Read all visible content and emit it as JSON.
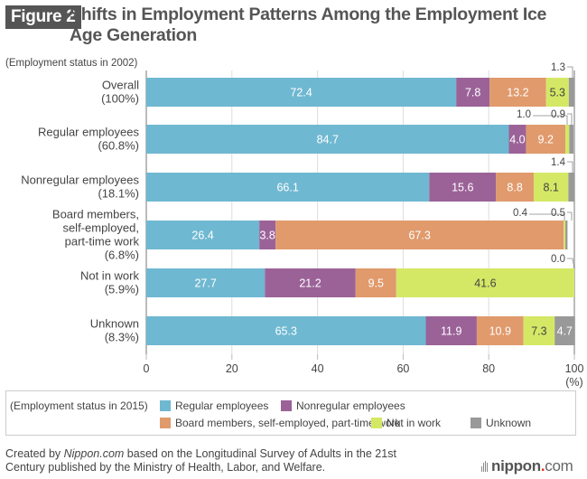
{
  "figure": {
    "badge": "Figure 2",
    "title": "Shifts in Employment Patterns Among the Employment Ice Age Generation",
    "subtitle": "(Employment status in 2002)"
  },
  "chart_data": {
    "type": "bar",
    "orientation": "horizontal",
    "stacked": true,
    "title": "Shifts in Employment Patterns Among the Employment Ice Age Generation",
    "ylabel": "(Employment status in 2002)",
    "xlabel": "(%)",
    "xlim": [
      0,
      100
    ],
    "xticks": [
      0,
      20,
      40,
      60,
      80,
      100
    ],
    "xtick_labels": [
      "0",
      "20",
      "40",
      "60",
      "80",
      "100"
    ],
    "x_unit": "(%)",
    "grid": true,
    "categories": [
      [
        "Overall",
        "(100%)"
      ],
      [
        "Regular employees",
        "(60.8%)"
      ],
      [
        "Nonregular employees",
        "(18.1%)"
      ],
      [
        "Board members,",
        "self-employed,",
        "part-time work",
        "(6.8%)"
      ],
      [
        "Not in work",
        "(5.9%)"
      ],
      [
        "Unknown",
        "(8.3%)"
      ]
    ],
    "series": [
      {
        "name": "Regular employees",
        "color": "#6fb8d1",
        "label_color": "#ffffff",
        "values": [
          72.4,
          84.7,
          66.1,
          26.4,
          27.7,
          65.3
        ]
      },
      {
        "name": "Nonregular employees",
        "color": "#9b6298",
        "label_color": "#ffffff",
        "values": [
          7.8,
          4.0,
          15.6,
          3.8,
          21.2,
          11.9
        ]
      },
      {
        "name": "Board members, self-employed, part-time work",
        "color": "#e09a6c",
        "label_color": "#ffffff",
        "values": [
          13.2,
          9.2,
          8.8,
          67.3,
          9.5,
          10.9
        ]
      },
      {
        "name": "Not in work",
        "color": "#d4e865",
        "label_color": "#444444",
        "values": [
          5.3,
          0.9,
          8.1,
          0.4,
          41.6,
          7.3
        ]
      },
      {
        "name": "Unknown",
        "color": "#999999",
        "label_color": "#ffffff",
        "values": [
          1.3,
          1.0,
          1.4,
          0.5,
          0.0,
          4.7
        ]
      }
    ],
    "outside_labels": [
      {
        "row": 0,
        "series": 4,
        "text": "1.3"
      },
      {
        "row": 1,
        "series": 4,
        "text": "1.0"
      },
      {
        "row": 1,
        "series": 3,
        "text": "0.9"
      },
      {
        "row": 2,
        "series": 4,
        "text": "1.4"
      },
      {
        "row": 3,
        "series": 3,
        "text": "0.4"
      },
      {
        "row": 3,
        "series": 4,
        "text": "0.5"
      },
      {
        "row": 4,
        "series": 4,
        "text": "0.0"
      }
    ],
    "legend": {
      "heading": "(Employment status in 2015)",
      "position": "bottom"
    }
  },
  "legend": {
    "heading": "(Employment status in 2015)",
    "items": [
      {
        "label": "Regular employees",
        "color": "#6fb8d1"
      },
      {
        "label": "Nonregular employees",
        "color": "#9b6298"
      },
      {
        "label": "Board members, self-employed, part-time work",
        "color": "#e09a6c"
      },
      {
        "label": "Not in work",
        "color": "#d4e865"
      },
      {
        "label": "Unknown",
        "color": "#999999"
      }
    ]
  },
  "source": {
    "prefix": "Created by ",
    "site": "Nippon.com",
    "rest": " based on the Longitudinal Survey of Adults in the 21st Century published by the Ministry of Health, Labor, and Welfare."
  },
  "logo": {
    "name": "nippon",
    "dot": ".",
    "tld": "com"
  }
}
